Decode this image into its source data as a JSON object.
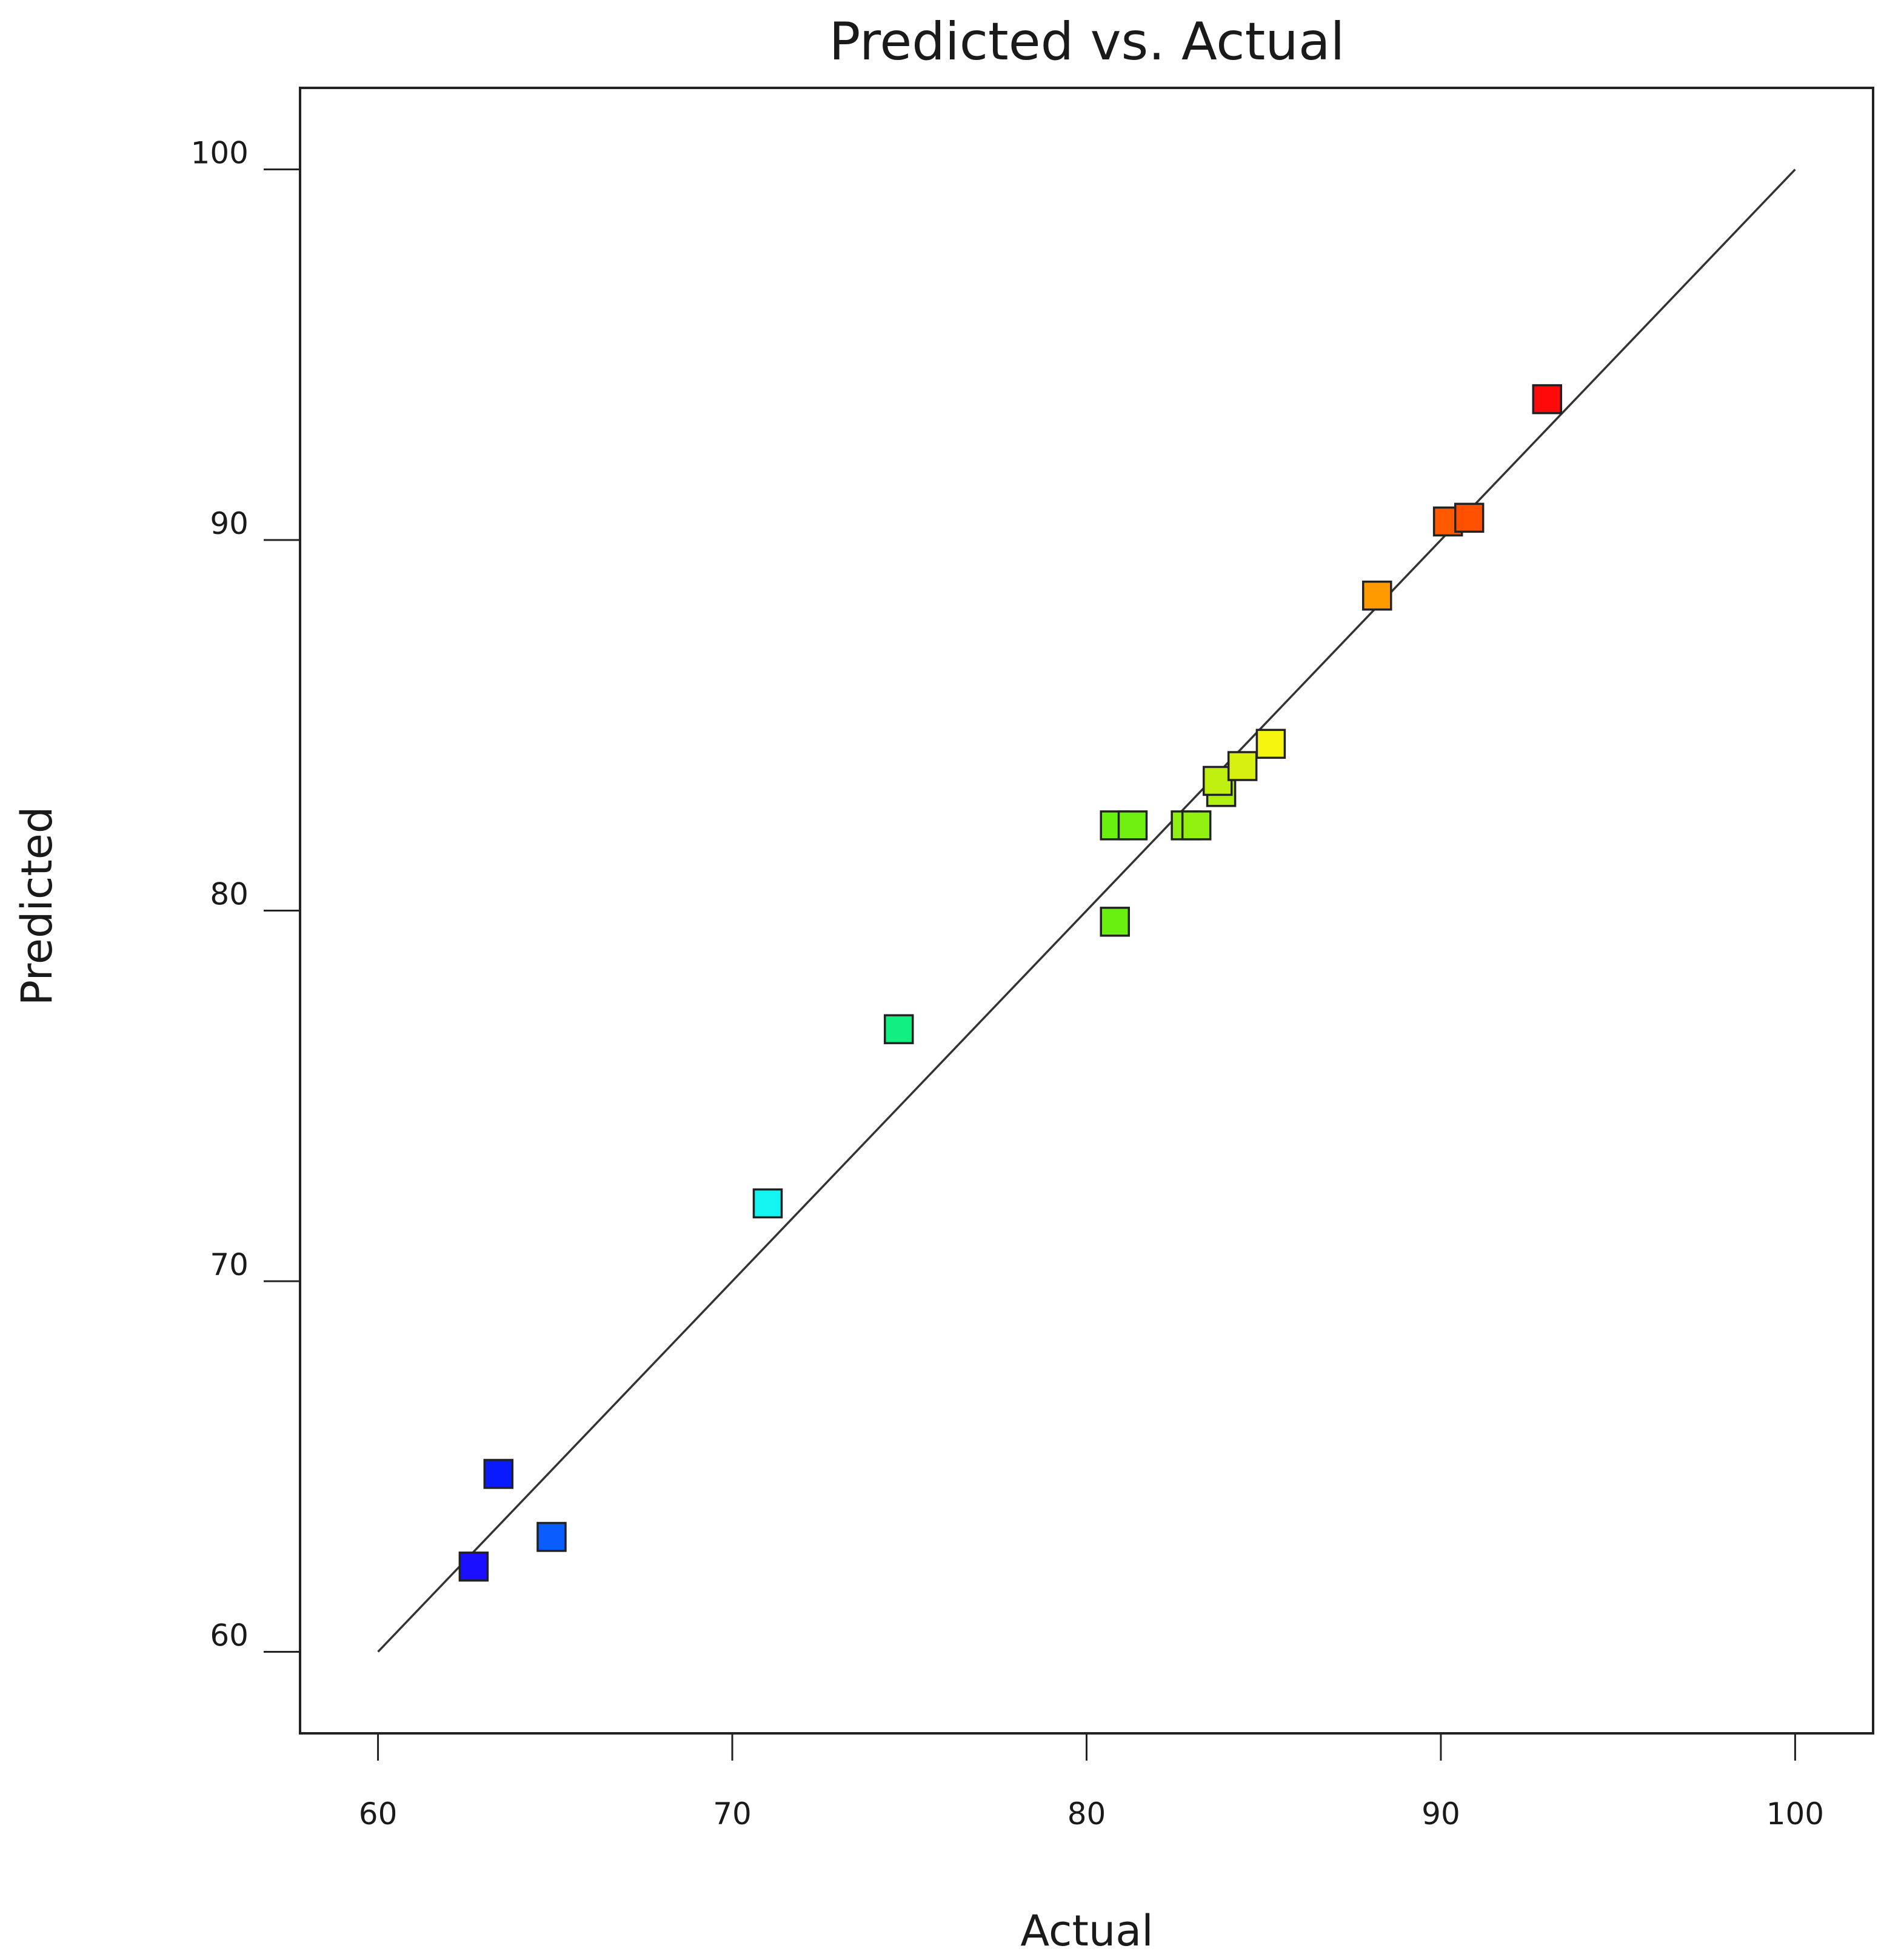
{
  "chart_data": {
    "type": "scatter",
    "title": "Predicted vs. Actual",
    "xlabel": "Actual",
    "ylabel": "Predicted",
    "xlim": [
      57.8,
      102.2
    ],
    "ylim": [
      57.8,
      102.2
    ],
    "xticks": [
      "60",
      "70",
      "80",
      "90",
      "100"
    ],
    "yticks": [
      "60",
      "70",
      "80",
      "90",
      "100"
    ],
    "grid": false,
    "marker": "square",
    "reference_line": {
      "from": [
        60,
        60
      ],
      "to": [
        100,
        100
      ],
      "color": "#333333"
    },
    "points": [
      {
        "x": 62.7,
        "y": 62.3,
        "color": "#1a10ff"
      },
      {
        "x": 63.4,
        "y": 64.8,
        "color": "#0a1aff"
      },
      {
        "x": 64.9,
        "y": 63.1,
        "color": "#0a5cff"
      },
      {
        "x": 71.0,
        "y": 72.1,
        "color": "#12f5f0"
      },
      {
        "x": 74.7,
        "y": 76.8,
        "color": "#10f080"
      },
      {
        "x": 80.8,
        "y": 79.7,
        "color": "#6af010"
      },
      {
        "x": 80.8,
        "y": 82.3,
        "color": "#6af010"
      },
      {
        "x": 81.3,
        "y": 82.3,
        "color": "#70f010"
      },
      {
        "x": 82.8,
        "y": 82.3,
        "color": "#8ef010"
      },
      {
        "x": 83.1,
        "y": 82.3,
        "color": "#92f010"
      },
      {
        "x": 83.8,
        "y": 83.2,
        "color": "#b0f010"
      },
      {
        "x": 83.7,
        "y": 83.5,
        "color": "#c0f010"
      },
      {
        "x": 84.4,
        "y": 83.9,
        "color": "#d8f010"
      },
      {
        "x": 85.2,
        "y": 84.5,
        "color": "#f5f510"
      },
      {
        "x": 88.2,
        "y": 88.5,
        "color": "#ff9a00"
      },
      {
        "x": 90.2,
        "y": 90.5,
        "color": "#ff5a00"
      },
      {
        "x": 90.8,
        "y": 90.6,
        "color": "#ff5000"
      },
      {
        "x": 93.0,
        "y": 93.8,
        "color": "#ff0a0a"
      }
    ]
  }
}
